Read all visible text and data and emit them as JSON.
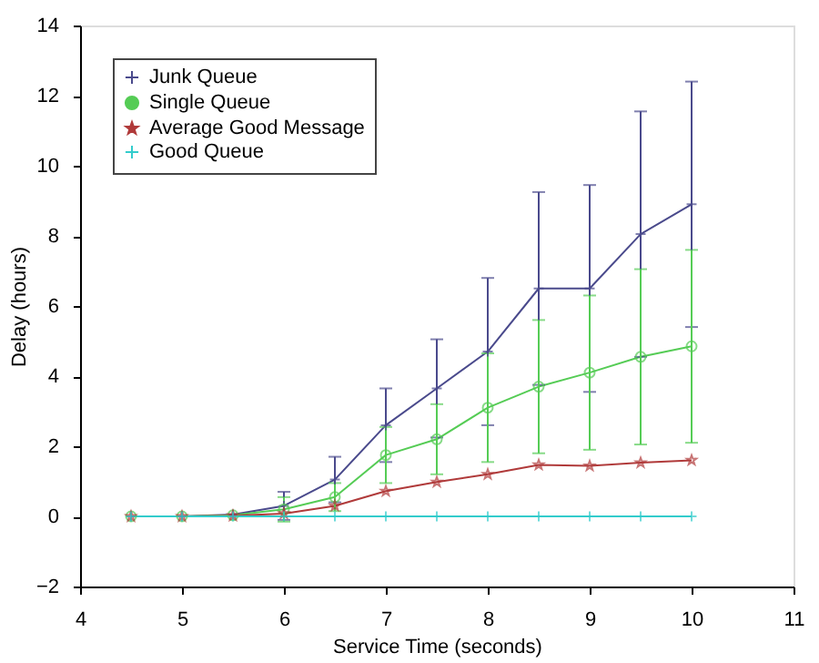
{
  "chart_data": {
    "type": "line",
    "xlabel": "Service Time (seconds)",
    "ylabel": "Delay (hours)",
    "x": [
      4.5,
      5,
      5.5,
      6,
      6.5,
      7,
      7.5,
      8,
      8.5,
      9,
      9.5,
      10
    ],
    "xlim": [
      4,
      11
    ],
    "xticks": [
      4,
      5,
      6,
      7,
      8,
      9,
      10,
      11
    ],
    "ylim": [
      -2,
      14
    ],
    "yticks": [
      -2,
      0,
      2,
      4,
      6,
      8,
      10,
      12,
      14
    ],
    "grid": false,
    "legend": "top left",
    "line_style": "solid",
    "series": [
      {
        "name": "Junk Queue",
        "color": "#4a4a8c",
        "marker": "cross",
        "values": [
          0,
          0,
          0.05,
          0.3,
          1.05,
          2.6,
          3.65,
          4.7,
          6.5,
          6.5,
          8.05,
          8.9
        ],
        "errors": [
          null,
          null,
          null,
          0.4,
          0.65,
          1.05,
          1.4,
          2.1,
          2.75,
          2.95,
          3.5,
          3.5
        ]
      },
      {
        "name": "Single Queue",
        "color": "#55cc55",
        "marker": "circle",
        "values": [
          0,
          0,
          0.03,
          0.2,
          0.55,
          1.75,
          2.2,
          3.1,
          3.7,
          4.1,
          4.55,
          4.85
        ],
        "errors": [
          null,
          null,
          null,
          0.35,
          0.4,
          0.8,
          1.0,
          1.55,
          1.9,
          2.2,
          2.5,
          2.75
        ]
      },
      {
        "name": "Average Good Message",
        "color": "#b03a3a",
        "marker": "star",
        "values": [
          0,
          0,
          0.02,
          0.08,
          0.3,
          0.72,
          0.98,
          1.2,
          1.47,
          1.44,
          1.53,
          1.6
        ]
      },
      {
        "name": "Good Queue",
        "color": "#33cccc",
        "marker": "cross",
        "values": [
          0,
          0,
          0,
          0,
          0,
          0,
          0,
          0,
          0,
          0,
          0,
          0
        ]
      }
    ]
  }
}
